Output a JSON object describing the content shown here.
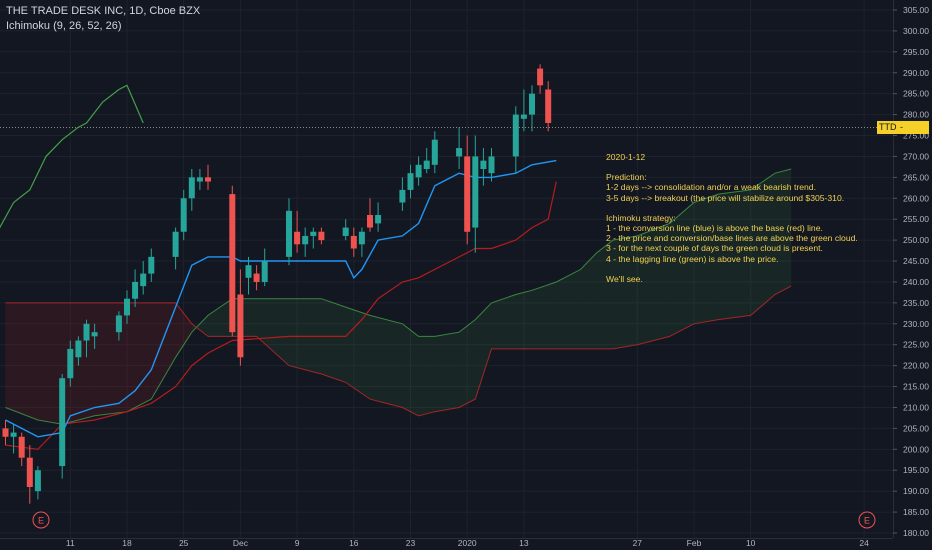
{
  "legend": {
    "symbol": "THE TRADE DESK INC, 1D, Cboe BZX",
    "indicator": "Ichimoku (9, 26, 52, 26)"
  },
  "price_tag": {
    "ticker": "TTD",
    "value": "277.76"
  },
  "note": {
    "date": "2020-1-12",
    "prediction_title": "Prediction:",
    "prediction_lines": [
      "1-2 days --> consolidation and/or a weak bearish trend.",
      "3-5 days --> breakout (the price will stabilize around $305-310."
    ],
    "strategy_title": "Ichimoku strategy:",
    "strategy_lines": [
      "1 - the conversion line (blue) is above the base (red) line.",
      "2 - the price and conversion/base lines are above the green cloud.",
      "3 - for the next couple of days the green cloud is present.",
      "4 - the lagging line (green) is above the price."
    ],
    "closing": "We'll see."
  },
  "colors": {
    "background": "#131722",
    "up": "#26a69a",
    "down": "#ef5350",
    "conversion": "#2196f3",
    "base": "#b71c1c",
    "lagging": "#43a047",
    "note": "#f0d050"
  },
  "earnings_marker": "E",
  "chart_data": {
    "type": "candlestick",
    "ylim": [
      179,
      307
    ],
    "y_ticks": [
      "180.00",
      "185.00",
      "190.00",
      "195.00",
      "200.00",
      "205.00",
      "210.00",
      "215.00",
      "220.00",
      "225.00",
      "230.00",
      "235.00",
      "240.00",
      "245.00",
      "250.00",
      "255.00",
      "260.00",
      "265.00",
      "270.00",
      "275.00",
      "280.00",
      "285.00",
      "290.00",
      "295.00",
      "300.00",
      "305.00"
    ],
    "x_tick_labels": [
      "11",
      "18",
      "25",
      "Dec",
      "9",
      "16",
      "23",
      "2020",
      "13",
      "27",
      "Feb",
      "10",
      "24"
    ],
    "x_tick_days": [
      8,
      15,
      22,
      29,
      36,
      43,
      50,
      57,
      64,
      78,
      85,
      92,
      106
    ],
    "last_price": 277.76,
    "candles": [
      {
        "d": 0,
        "o": 205,
        "h": 207,
        "l": 201,
        "c": 203
      },
      {
        "d": 1,
        "o": 203,
        "h": 206,
        "l": 199,
        "c": 204
      },
      {
        "d": 2,
        "o": 203,
        "h": 204,
        "l": 196,
        "c": 198
      },
      {
        "d": 3,
        "o": 198,
        "h": 201,
        "l": 187,
        "c": 191
      },
      {
        "d": 4,
        "o": 190,
        "h": 196,
        "l": 188,
        "c": 195
      },
      {
        "d": 7,
        "o": 196,
        "h": 218,
        "l": 193,
        "c": 217
      },
      {
        "d": 8,
        "o": 217,
        "h": 226,
        "l": 215,
        "c": 224
      },
      {
        "d": 9,
        "o": 222,
        "h": 227,
        "l": 220,
        "c": 226
      },
      {
        "d": 10,
        "o": 226,
        "h": 231,
        "l": 222,
        "c": 230
      },
      {
        "d": 11,
        "o": 227,
        "h": 230,
        "l": 224,
        "c": 228
      },
      {
        "d": 14,
        "o": 228,
        "h": 233,
        "l": 226,
        "c": 232
      },
      {
        "d": 15,
        "o": 232,
        "h": 238,
        "l": 230,
        "c": 236
      },
      {
        "d": 16,
        "o": 236,
        "h": 243,
        "l": 234,
        "c": 240
      },
      {
        "d": 17,
        "o": 239,
        "h": 245,
        "l": 237,
        "c": 242
      },
      {
        "d": 18,
        "o": 242,
        "h": 248,
        "l": 240,
        "c": 246
      },
      {
        "d": 21,
        "o": 246,
        "h": 253,
        "l": 243,
        "c": 252
      },
      {
        "d": 22,
        "o": 252,
        "h": 262,
        "l": 250,
        "c": 260
      },
      {
        "d": 23,
        "o": 260,
        "h": 267,
        "l": 257,
        "c": 265
      },
      {
        "d": 24,
        "o": 264,
        "h": 267,
        "l": 262,
        "c": 265
      },
      {
        "d": 25,
        "o": 265,
        "h": 268,
        "l": 262,
        "c": 264
      },
      {
        "d": 28,
        "o": 261,
        "h": 263,
        "l": 227,
        "c": 228
      },
      {
        "d": 29,
        "o": 237,
        "h": 243,
        "l": 220,
        "c": 222
      },
      {
        "d": 30,
        "o": 241,
        "h": 246,
        "l": 237,
        "c": 244
      },
      {
        "d": 31,
        "o": 242,
        "h": 244,
        "l": 238,
        "c": 240
      },
      {
        "d": 32,
        "o": 240,
        "h": 248,
        "l": 239,
        "c": 245
      },
      {
        "d": 35,
        "o": 246,
        "h": 260,
        "l": 244,
        "c": 257
      },
      {
        "d": 36,
        "o": 252,
        "h": 257,
        "l": 247,
        "c": 249
      },
      {
        "d": 37,
        "o": 249,
        "h": 253,
        "l": 246,
        "c": 251
      },
      {
        "d": 38,
        "o": 251,
        "h": 253,
        "l": 248,
        "c": 252
      },
      {
        "d": 39,
        "o": 252,
        "h": 253,
        "l": 249,
        "c": 250
      },
      {
        "d": 42,
        "o": 251,
        "h": 255,
        "l": 250,
        "c": 253
      },
      {
        "d": 43,
        "o": 251,
        "h": 253,
        "l": 246,
        "c": 248
      },
      {
        "d": 44,
        "o": 249,
        "h": 253,
        "l": 246,
        "c": 252
      },
      {
        "d": 45,
        "o": 256,
        "h": 260,
        "l": 252,
        "c": 253
      },
      {
        "d": 46,
        "o": 254,
        "h": 259,
        "l": 252,
        "c": 256
      },
      {
        "d": 49,
        "o": 259,
        "h": 265,
        "l": 257,
        "c": 262
      },
      {
        "d": 50,
        "o": 262,
        "h": 268,
        "l": 260,
        "c": 266
      },
      {
        "d": 51,
        "o": 265,
        "h": 270,
        "l": 263,
        "c": 268
      },
      {
        "d": 52,
        "o": 267,
        "h": 272,
        "l": 266,
        "c": 269
      },
      {
        "d": 53,
        "o": 268,
        "h": 276,
        "l": 266,
        "c": 274
      },
      {
        "d": 56,
        "o": 270,
        "h": 277,
        "l": 267,
        "c": 272
      },
      {
        "d": 57,
        "o": 270,
        "h": 275,
        "l": 249,
        "c": 252
      },
      {
        "d": 58,
        "o": 253,
        "h": 275,
        "l": 247,
        "c": 270
      },
      {
        "d": 59,
        "o": 267,
        "h": 272,
        "l": 263,
        "c": 269
      },
      {
        "d": 60,
        "o": 266,
        "h": 272,
        "l": 264,
        "c": 270
      },
      {
        "d": 63,
        "o": 270,
        "h": 282,
        "l": 266,
        "c": 280
      },
      {
        "d": 64,
        "o": 279,
        "h": 286,
        "l": 276,
        "c": 280
      },
      {
        "d": 65,
        "o": 280,
        "h": 287,
        "l": 276,
        "c": 285
      },
      {
        "d": 66,
        "o": 291,
        "h": 292,
        "l": 285,
        "c": 287
      },
      {
        "d": 67,
        "o": 286,
        "h": 288,
        "l": 276,
        "c": 278
      }
    ],
    "conversion_line": [
      [
        0,
        207
      ],
      [
        2,
        205
      ],
      [
        4,
        203
      ],
      [
        7,
        204
      ],
      [
        8,
        208
      ],
      [
        11,
        210
      ],
      [
        14,
        211
      ],
      [
        16,
        214
      ],
      [
        18,
        219
      ],
      [
        21,
        234
      ],
      [
        23,
        244
      ],
      [
        25,
        246
      ],
      [
        28,
        246
      ],
      [
        29,
        245
      ],
      [
        32,
        245
      ],
      [
        35,
        245
      ],
      [
        39,
        245
      ],
      [
        42,
        245
      ],
      [
        43,
        241
      ],
      [
        44,
        243
      ],
      [
        46,
        250
      ],
      [
        49,
        251
      ],
      [
        51,
        254
      ],
      [
        53,
        263
      ],
      [
        56,
        266
      ],
      [
        58,
        265
      ],
      [
        60,
        265
      ],
      [
        63,
        266
      ],
      [
        65,
        268
      ],
      [
        68,
        269
      ]
    ],
    "base_line": [
      [
        0,
        201
      ],
      [
        4,
        200
      ],
      [
        7,
        206
      ],
      [
        11,
        207
      ],
      [
        15,
        209
      ],
      [
        18,
        211
      ],
      [
        21,
        215
      ],
      [
        23,
        220
      ],
      [
        25,
        223
      ],
      [
        28,
        226
      ],
      [
        35,
        227
      ],
      [
        42,
        227
      ],
      [
        44,
        231
      ],
      [
        46,
        236
      ],
      [
        49,
        240
      ],
      [
        51,
        241
      ],
      [
        53,
        243
      ],
      [
        56,
        246
      ],
      [
        58,
        248
      ],
      [
        60,
        248
      ],
      [
        63,
        250
      ],
      [
        65,
        253
      ],
      [
        67,
        255
      ],
      [
        68,
        264
      ]
    ],
    "lagging_line": [
      [
        -27,
        252
      ],
      [
        -25,
        252
      ],
      [
        -24,
        248
      ],
      [
        -22,
        254
      ],
      [
        -20,
        255
      ],
      [
        -19,
        252
      ],
      [
        -17,
        257
      ],
      [
        -15,
        262
      ],
      [
        -13,
        264
      ],
      [
        -12,
        261
      ],
      [
        -10,
        266
      ],
      [
        -8,
        270
      ],
      [
        -6,
        275
      ],
      [
        -5,
        273
      ],
      [
        -3,
        264
      ],
      [
        -1,
        252
      ],
      [
        1,
        259
      ],
      [
        3,
        262
      ],
      [
        5,
        270
      ],
      [
        7,
        274
      ],
      [
        9,
        277
      ],
      [
        10,
        278
      ],
      [
        12,
        283
      ],
      [
        14,
        286
      ],
      [
        15,
        287
      ],
      [
        17,
        278
      ]
    ],
    "span_a": [
      [
        0,
        210
      ],
      [
        4,
        207
      ],
      [
        7,
        206
      ],
      [
        11,
        208
      ],
      [
        15,
        209
      ],
      [
        18,
        212
      ],
      [
        21,
        222
      ],
      [
        23,
        228
      ],
      [
        25,
        232
      ],
      [
        28,
        236
      ],
      [
        31,
        236
      ],
      [
        35,
        236
      ],
      [
        39,
        236
      ],
      [
        42,
        234
      ],
      [
        45,
        232
      ],
      [
        49,
        230
      ],
      [
        51,
        227
      ],
      [
        53,
        227
      ],
      [
        56,
        228
      ],
      [
        58,
        231
      ],
      [
        60,
        235
      ],
      [
        63,
        237
      ],
      [
        65,
        238
      ],
      [
        68,
        240
      ],
      [
        71,
        243
      ],
      [
        73,
        247
      ],
      [
        75,
        250
      ],
      [
        78,
        251
      ],
      [
        82,
        254
      ],
      [
        85,
        259
      ],
      [
        88,
        261
      ],
      [
        92,
        262
      ],
      [
        95,
        266
      ],
      [
        97,
        267
      ]
    ],
    "span_b": [
      [
        0,
        235
      ],
      [
        4,
        235
      ],
      [
        7,
        235
      ],
      [
        11,
        235
      ],
      [
        15,
        235
      ],
      [
        18,
        235
      ],
      [
        21,
        235
      ],
      [
        23,
        230
      ],
      [
        25,
        227
      ],
      [
        28,
        227
      ],
      [
        31,
        227
      ],
      [
        35,
        220
      ],
      [
        39,
        218
      ],
      [
        42,
        216
      ],
      [
        45,
        212
      ],
      [
        49,
        210
      ],
      [
        51,
        208
      ],
      [
        53,
        209
      ],
      [
        56,
        210
      ],
      [
        58,
        212
      ],
      [
        60,
        224
      ],
      [
        63,
        224
      ],
      [
        65,
        224
      ],
      [
        68,
        224
      ],
      [
        71,
        224
      ],
      [
        73,
        224
      ],
      [
        75,
        224
      ],
      [
        78,
        225
      ],
      [
        82,
        227
      ],
      [
        85,
        230
      ],
      [
        88,
        231
      ],
      [
        92,
        232
      ],
      [
        95,
        237
      ],
      [
        97,
        239
      ]
    ]
  }
}
